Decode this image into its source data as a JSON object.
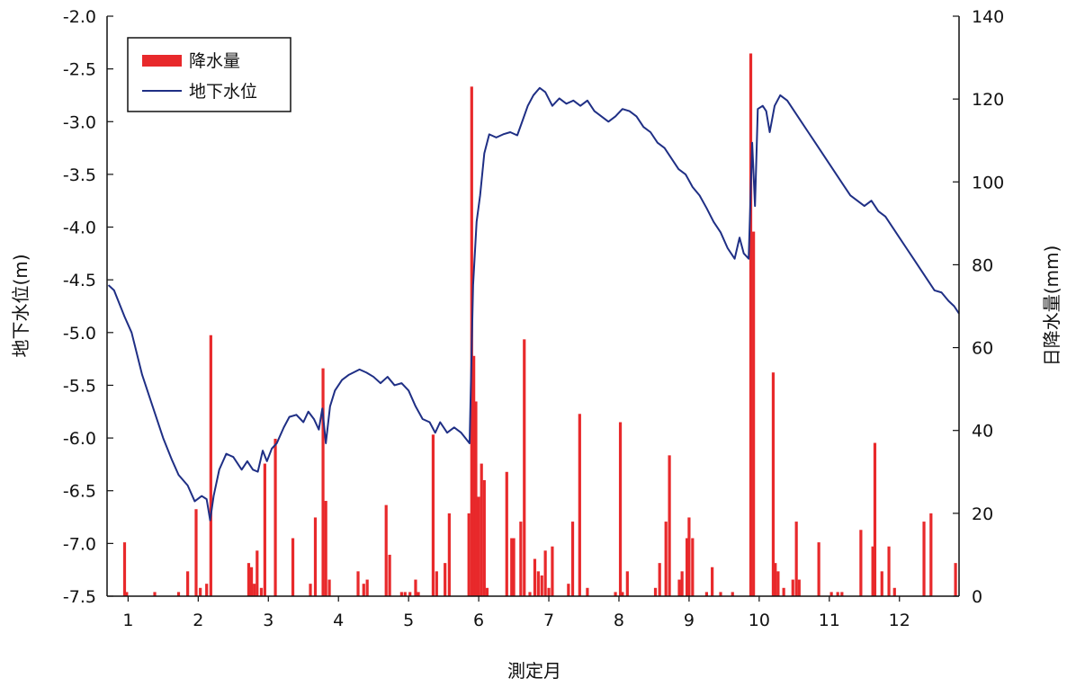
{
  "chart_data": {
    "type": "bar+line",
    "xlabel": "測定月",
    "ylabel_left": "地下水位(m)",
    "ylabel_right": "日降水量(mm)",
    "x_ticks": [
      "1",
      "2",
      "3",
      "4",
      "5",
      "6",
      "7",
      "8",
      "9",
      "10",
      "11",
      "12"
    ],
    "x_range": [
      0.7,
      12.85
    ],
    "y_left_range": [
      -7.5,
      -2.0
    ],
    "y_left_ticks": [
      "-2.0",
      "-2.5",
      "-3.0",
      "-3.5",
      "-4.0",
      "-4.5",
      "-5.0",
      "-5.5",
      "-6.0",
      "-6.5",
      "-7.0",
      "-7.5"
    ],
    "y_right_range": [
      0,
      140
    ],
    "y_right_ticks": [
      "140",
      "120",
      "100",
      "80",
      "60",
      "40",
      "20",
      "0"
    ],
    "grid": false,
    "legend_position": "top-left",
    "legend": [
      "降水量",
      "地下水位"
    ],
    "colors": {
      "precipitation": "#e8292b",
      "groundwater": "#1f2f85",
      "axis": "#111111"
    },
    "series": [
      {
        "name": "降水量",
        "kind": "bar",
        "axis": "right",
        "points": [
          [
            0.95,
            13
          ],
          [
            0.98,
            1
          ],
          [
            1.38,
            1
          ],
          [
            1.72,
            1
          ],
          [
            1.85,
            6
          ],
          [
            1.97,
            21
          ],
          [
            2.03,
            2
          ],
          [
            2.12,
            3
          ],
          [
            2.18,
            63
          ],
          [
            2.72,
            8
          ],
          [
            2.76,
            7
          ],
          [
            2.8,
            3
          ],
          [
            2.84,
            11
          ],
          [
            2.9,
            2
          ],
          [
            2.95,
            32
          ],
          [
            3.1,
            38
          ],
          [
            3.35,
            14
          ],
          [
            3.6,
            3
          ],
          [
            3.67,
            19
          ],
          [
            3.78,
            55
          ],
          [
            3.82,
            23
          ],
          [
            3.87,
            4
          ],
          [
            4.28,
            6
          ],
          [
            4.36,
            3
          ],
          [
            4.41,
            4
          ],
          [
            4.68,
            22
          ],
          [
            4.73,
            10
          ],
          [
            4.9,
            1
          ],
          [
            4.95,
            1
          ],
          [
            5.02,
            1
          ],
          [
            5.1,
            4
          ],
          [
            5.14,
            1
          ],
          [
            5.35,
            39
          ],
          [
            5.4,
            6
          ],
          [
            5.52,
            8
          ],
          [
            5.58,
            20
          ],
          [
            5.86,
            20
          ],
          [
            5.9,
            123
          ],
          [
            5.93,
            58
          ],
          [
            5.96,
            47
          ],
          [
            6.0,
            24
          ],
          [
            6.04,
            32
          ],
          [
            6.08,
            28
          ],
          [
            6.12,
            2
          ],
          [
            6.4,
            30
          ],
          [
            6.47,
            14
          ],
          [
            6.5,
            14
          ],
          [
            6.6,
            18
          ],
          [
            6.65,
            62
          ],
          [
            6.73,
            1
          ],
          [
            6.8,
            9
          ],
          [
            6.85,
            6
          ],
          [
            6.9,
            5
          ],
          [
            6.95,
            11
          ],
          [
            7.0,
            2
          ],
          [
            7.05,
            12
          ],
          [
            7.28,
            3
          ],
          [
            7.34,
            18
          ],
          [
            7.44,
            44
          ],
          [
            7.55,
            2
          ],
          [
            7.95,
            1
          ],
          [
            8.02,
            42
          ],
          [
            8.05,
            1
          ],
          [
            8.12,
            6
          ],
          [
            8.52,
            2
          ],
          [
            8.58,
            8
          ],
          [
            8.67,
            18
          ],
          [
            8.72,
            34
          ],
          [
            8.86,
            4
          ],
          [
            8.9,
            6
          ],
          [
            8.97,
            14
          ],
          [
            9.0,
            19
          ],
          [
            9.05,
            14
          ],
          [
            9.25,
            1
          ],
          [
            9.33,
            7
          ],
          [
            9.45,
            1
          ],
          [
            9.62,
            1
          ],
          [
            9.88,
            131
          ],
          [
            9.92,
            88
          ],
          [
            10.2,
            54
          ],
          [
            10.23,
            8
          ],
          [
            10.27,
            6
          ],
          [
            10.35,
            2
          ],
          [
            10.48,
            4
          ],
          [
            10.53,
            18
          ],
          [
            10.57,
            4
          ],
          [
            10.85,
            13
          ],
          [
            11.03,
            1
          ],
          [
            11.12,
            1
          ],
          [
            11.18,
            1
          ],
          [
            11.45,
            16
          ],
          [
            11.62,
            12
          ],
          [
            11.65,
            37
          ],
          [
            11.75,
            6
          ],
          [
            11.85,
            12
          ],
          [
            11.93,
            2
          ],
          [
            12.35,
            18
          ],
          [
            12.45,
            20
          ],
          [
            12.8,
            8
          ]
        ]
      },
      {
        "name": "地下水位",
        "kind": "line",
        "axis": "left",
        "points": [
          [
            0.72,
            -4.55
          ],
          [
            0.8,
            -4.6
          ],
          [
            0.95,
            -4.85
          ],
          [
            1.05,
            -5.0
          ],
          [
            1.2,
            -5.4
          ],
          [
            1.35,
            -5.7
          ],
          [
            1.5,
            -6.0
          ],
          [
            1.62,
            -6.2
          ],
          [
            1.72,
            -6.35
          ],
          [
            1.85,
            -6.45
          ],
          [
            1.95,
            -6.6
          ],
          [
            2.05,
            -6.55
          ],
          [
            2.12,
            -6.58
          ],
          [
            2.17,
            -6.78
          ],
          [
            2.22,
            -6.55
          ],
          [
            2.3,
            -6.3
          ],
          [
            2.4,
            -6.15
          ],
          [
            2.5,
            -6.18
          ],
          [
            2.62,
            -6.3
          ],
          [
            2.7,
            -6.22
          ],
          [
            2.78,
            -6.3
          ],
          [
            2.85,
            -6.32
          ],
          [
            2.92,
            -6.12
          ],
          [
            2.98,
            -6.22
          ],
          [
            3.05,
            -6.1
          ],
          [
            3.12,
            -6.05
          ],
          [
            3.22,
            -5.9
          ],
          [
            3.3,
            -5.8
          ],
          [
            3.4,
            -5.78
          ],
          [
            3.5,
            -5.85
          ],
          [
            3.57,
            -5.75
          ],
          [
            3.65,
            -5.82
          ],
          [
            3.72,
            -5.92
          ],
          [
            3.77,
            -5.72
          ],
          [
            3.82,
            -6.05
          ],
          [
            3.88,
            -5.7
          ],
          [
            3.95,
            -5.55
          ],
          [
            4.05,
            -5.45
          ],
          [
            4.15,
            -5.4
          ],
          [
            4.3,
            -5.35
          ],
          [
            4.4,
            -5.38
          ],
          [
            4.5,
            -5.42
          ],
          [
            4.6,
            -5.48
          ],
          [
            4.7,
            -5.42
          ],
          [
            4.8,
            -5.5
          ],
          [
            4.9,
            -5.48
          ],
          [
            5.0,
            -5.55
          ],
          [
            5.1,
            -5.7
          ],
          [
            5.2,
            -5.82
          ],
          [
            5.3,
            -5.85
          ],
          [
            5.38,
            -5.95
          ],
          [
            5.45,
            -5.85
          ],
          [
            5.55,
            -5.95
          ],
          [
            5.65,
            -5.9
          ],
          [
            5.75,
            -5.95
          ],
          [
            5.87,
            -6.05
          ],
          [
            5.92,
            -4.55
          ],
          [
            5.97,
            -3.95
          ],
          [
            6.02,
            -3.7
          ],
          [
            6.08,
            -3.3
          ],
          [
            6.15,
            -3.12
          ],
          [
            6.25,
            -3.15
          ],
          [
            6.35,
            -3.12
          ],
          [
            6.45,
            -3.1
          ],
          [
            6.55,
            -3.13
          ],
          [
            6.62,
            -3.0
          ],
          [
            6.7,
            -2.85
          ],
          [
            6.78,
            -2.75
          ],
          [
            6.87,
            -2.68
          ],
          [
            6.95,
            -2.72
          ],
          [
            7.05,
            -2.85
          ],
          [
            7.15,
            -2.78
          ],
          [
            7.25,
            -2.83
          ],
          [
            7.35,
            -2.8
          ],
          [
            7.45,
            -2.85
          ],
          [
            7.55,
            -2.8
          ],
          [
            7.65,
            -2.9
          ],
          [
            7.75,
            -2.95
          ],
          [
            7.85,
            -3.0
          ],
          [
            7.95,
            -2.95
          ],
          [
            8.05,
            -2.88
          ],
          [
            8.15,
            -2.9
          ],
          [
            8.25,
            -2.95
          ],
          [
            8.35,
            -3.05
          ],
          [
            8.45,
            -3.1
          ],
          [
            8.55,
            -3.2
          ],
          [
            8.65,
            -3.25
          ],
          [
            8.75,
            -3.35
          ],
          [
            8.85,
            -3.45
          ],
          [
            8.95,
            -3.5
          ],
          [
            9.05,
            -3.62
          ],
          [
            9.15,
            -3.7
          ],
          [
            9.25,
            -3.82
          ],
          [
            9.35,
            -3.95
          ],
          [
            9.45,
            -4.05
          ],
          [
            9.55,
            -4.2
          ],
          [
            9.65,
            -4.3
          ],
          [
            9.72,
            -4.1
          ],
          [
            9.78,
            -4.25
          ],
          [
            9.85,
            -4.3
          ],
          [
            9.9,
            -3.2
          ],
          [
            9.94,
            -3.8
          ],
          [
            9.98,
            -2.88
          ],
          [
            10.05,
            -2.85
          ],
          [
            10.1,
            -2.9
          ],
          [
            10.15,
            -3.1
          ],
          [
            10.22,
            -2.85
          ],
          [
            10.3,
            -2.75
          ],
          [
            10.4,
            -2.8
          ],
          [
            10.5,
            -2.9
          ],
          [
            10.6,
            -3.0
          ],
          [
            10.7,
            -3.1
          ],
          [
            10.8,
            -3.2
          ],
          [
            10.9,
            -3.3
          ],
          [
            11.0,
            -3.4
          ],
          [
            11.1,
            -3.5
          ],
          [
            11.2,
            -3.6
          ],
          [
            11.3,
            -3.7
          ],
          [
            11.4,
            -3.75
          ],
          [
            11.5,
            -3.8
          ],
          [
            11.6,
            -3.75
          ],
          [
            11.7,
            -3.85
          ],
          [
            11.8,
            -3.9
          ],
          [
            11.9,
            -4.0
          ],
          [
            12.0,
            -4.1
          ],
          [
            12.1,
            -4.2
          ],
          [
            12.2,
            -4.3
          ],
          [
            12.3,
            -4.4
          ],
          [
            12.4,
            -4.5
          ],
          [
            12.5,
            -4.6
          ],
          [
            12.6,
            -4.62
          ],
          [
            12.7,
            -4.7
          ],
          [
            12.78,
            -4.75
          ],
          [
            12.85,
            -4.82
          ]
        ]
      }
    ]
  }
}
